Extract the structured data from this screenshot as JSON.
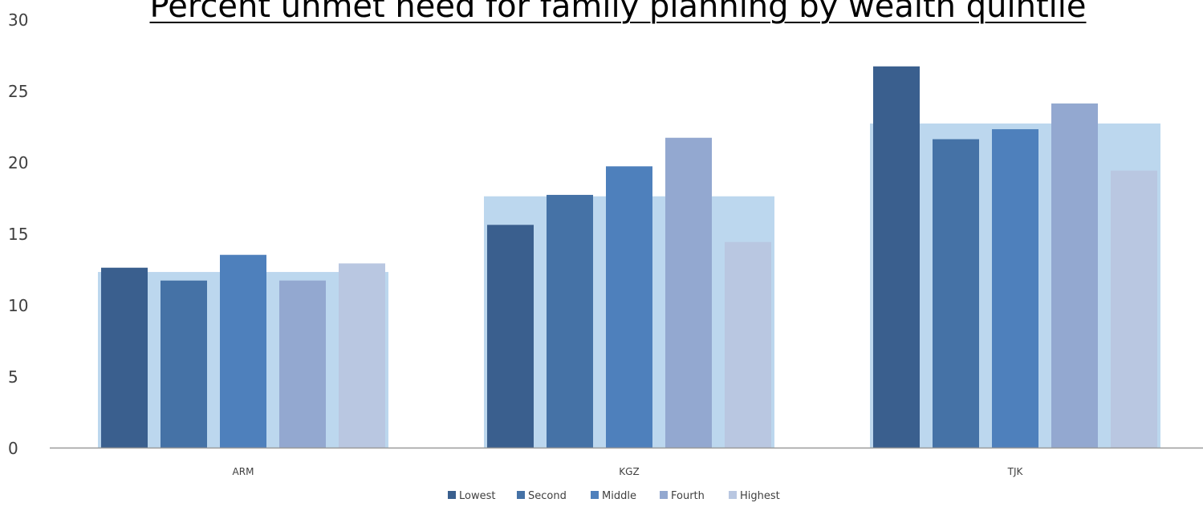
{
  "chart_data": {
    "type": "bar",
    "title": "Percent unmet need for family planning by wealth quintile",
    "xlabel": "",
    "ylabel": "",
    "categories": [
      "ARM",
      "KGZ",
      "TJK"
    ],
    "ylim": [
      0,
      30
    ],
    "yticks": [
      0,
      5,
      10,
      15,
      20,
      25,
      30
    ],
    "grid": false,
    "legend_position": "bottom",
    "series": [
      {
        "name": "Lowest",
        "values": [
          12.6,
          15.6,
          26.7
        ],
        "color": "#3a5f8e"
      },
      {
        "name": "Second",
        "values": [
          11.7,
          17.7,
          21.6
        ],
        "color": "#4572a6"
      },
      {
        "name": "Middle",
        "values": [
          13.5,
          19.7,
          22.3
        ],
        "color": "#4e80bc"
      },
      {
        "name": "Fourth",
        "values": [
          11.7,
          21.7,
          24.1
        ],
        "color": "#93a8d0"
      },
      {
        "name": "Highest",
        "values": [
          12.9,
          14.4,
          19.4
        ],
        "color": "#b9c7e1"
      }
    ],
    "background_totals": {
      "values": [
        12.3,
        17.6,
        22.7
      ],
      "color": "#bcd7ee"
    }
  }
}
